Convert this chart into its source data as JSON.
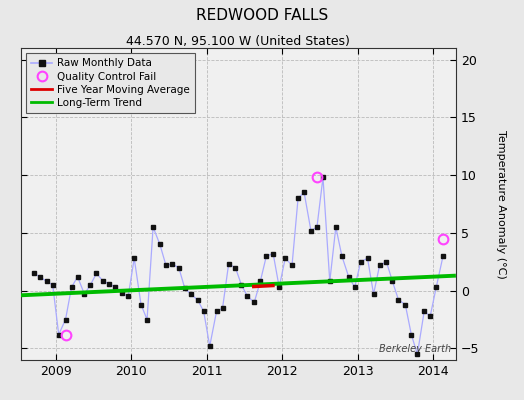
{
  "title": "REDWOOD FALLS",
  "subtitle": "44.570 N, 95.100 W (United States)",
  "ylabel": "Temperature Anomaly (°C)",
  "watermark": "Berkeley Earth",
  "background_color": "#e8e8e8",
  "plot_bg_color": "#f0f0f0",
  "ylim": [
    -6,
    21
  ],
  "yticks": [
    -5,
    0,
    5,
    10,
    15,
    20
  ],
  "xlim": [
    2008.54,
    2014.3
  ],
  "xticks": [
    2009,
    2010,
    2011,
    2012,
    2013,
    2014
  ],
  "raw_times": [
    2008.71,
    2008.79,
    2008.88,
    2008.96,
    2009.04,
    2009.13,
    2009.21,
    2009.29,
    2009.38,
    2009.46,
    2009.54,
    2009.63,
    2009.71,
    2009.79,
    2009.88,
    2009.96,
    2010.04,
    2010.13,
    2010.21,
    2010.29,
    2010.38,
    2010.46,
    2010.54,
    2010.63,
    2010.71,
    2010.79,
    2010.88,
    2010.96,
    2011.04,
    2011.13,
    2011.21,
    2011.29,
    2011.38,
    2011.46,
    2011.54,
    2011.63,
    2011.71,
    2011.79,
    2011.88,
    2011.96,
    2012.04,
    2012.13,
    2012.21,
    2012.29,
    2012.38,
    2012.46,
    2012.54,
    2012.63,
    2012.71,
    2012.79,
    2012.88,
    2012.96,
    2013.04,
    2013.13,
    2013.21,
    2013.29,
    2013.38,
    2013.46,
    2013.54,
    2013.63,
    2013.71,
    2013.79,
    2013.88,
    2013.96,
    2014.04,
    2014.13
  ],
  "raw_values": [
    1.5,
    1.2,
    0.8,
    0.5,
    -3.8,
    -2.5,
    0.3,
    1.2,
    -0.3,
    0.5,
    1.5,
    0.8,
    0.6,
    0.3,
    -0.2,
    -0.5,
    2.8,
    -1.2,
    -2.5,
    5.5,
    4.0,
    2.2,
    2.3,
    2.0,
    0.2,
    -0.3,
    -0.8,
    -1.8,
    -4.8,
    -1.8,
    -1.5,
    2.3,
    2.0,
    0.5,
    -0.5,
    -1.0,
    0.8,
    3.0,
    3.2,
    0.3,
    2.8,
    2.2,
    8.0,
    8.5,
    5.2,
    5.5,
    9.8,
    0.8,
    5.5,
    3.0,
    1.2,
    0.3,
    2.5,
    2.8,
    -0.3,
    2.2,
    2.5,
    0.8,
    -0.8,
    -1.2,
    -3.8,
    -5.5,
    -1.8,
    -2.2,
    0.3,
    3.0
  ],
  "qc_fail_times": [
    2009.13,
    2012.46,
    2014.13
  ],
  "qc_fail_values": [
    -3.8,
    9.8,
    4.5
  ],
  "moving_avg_times": [
    2011.6,
    2011.9
  ],
  "moving_avg_values": [
    0.35,
    0.45
  ],
  "trend_times": [
    2008.54,
    2014.3
  ],
  "trend_values": [
    -0.4,
    1.3
  ],
  "line_color": "#6666ff",
  "line_color_light": "#aaaaff",
  "marker_color": "#111111",
  "qc_color": "#ff44ff",
  "moving_avg_color": "#dd0000",
  "trend_color": "#00bb00",
  "grid_color": "#bbbbbb",
  "title_fontsize": 11,
  "subtitle_fontsize": 9,
  "tick_fontsize": 9,
  "ylabel_fontsize": 8
}
